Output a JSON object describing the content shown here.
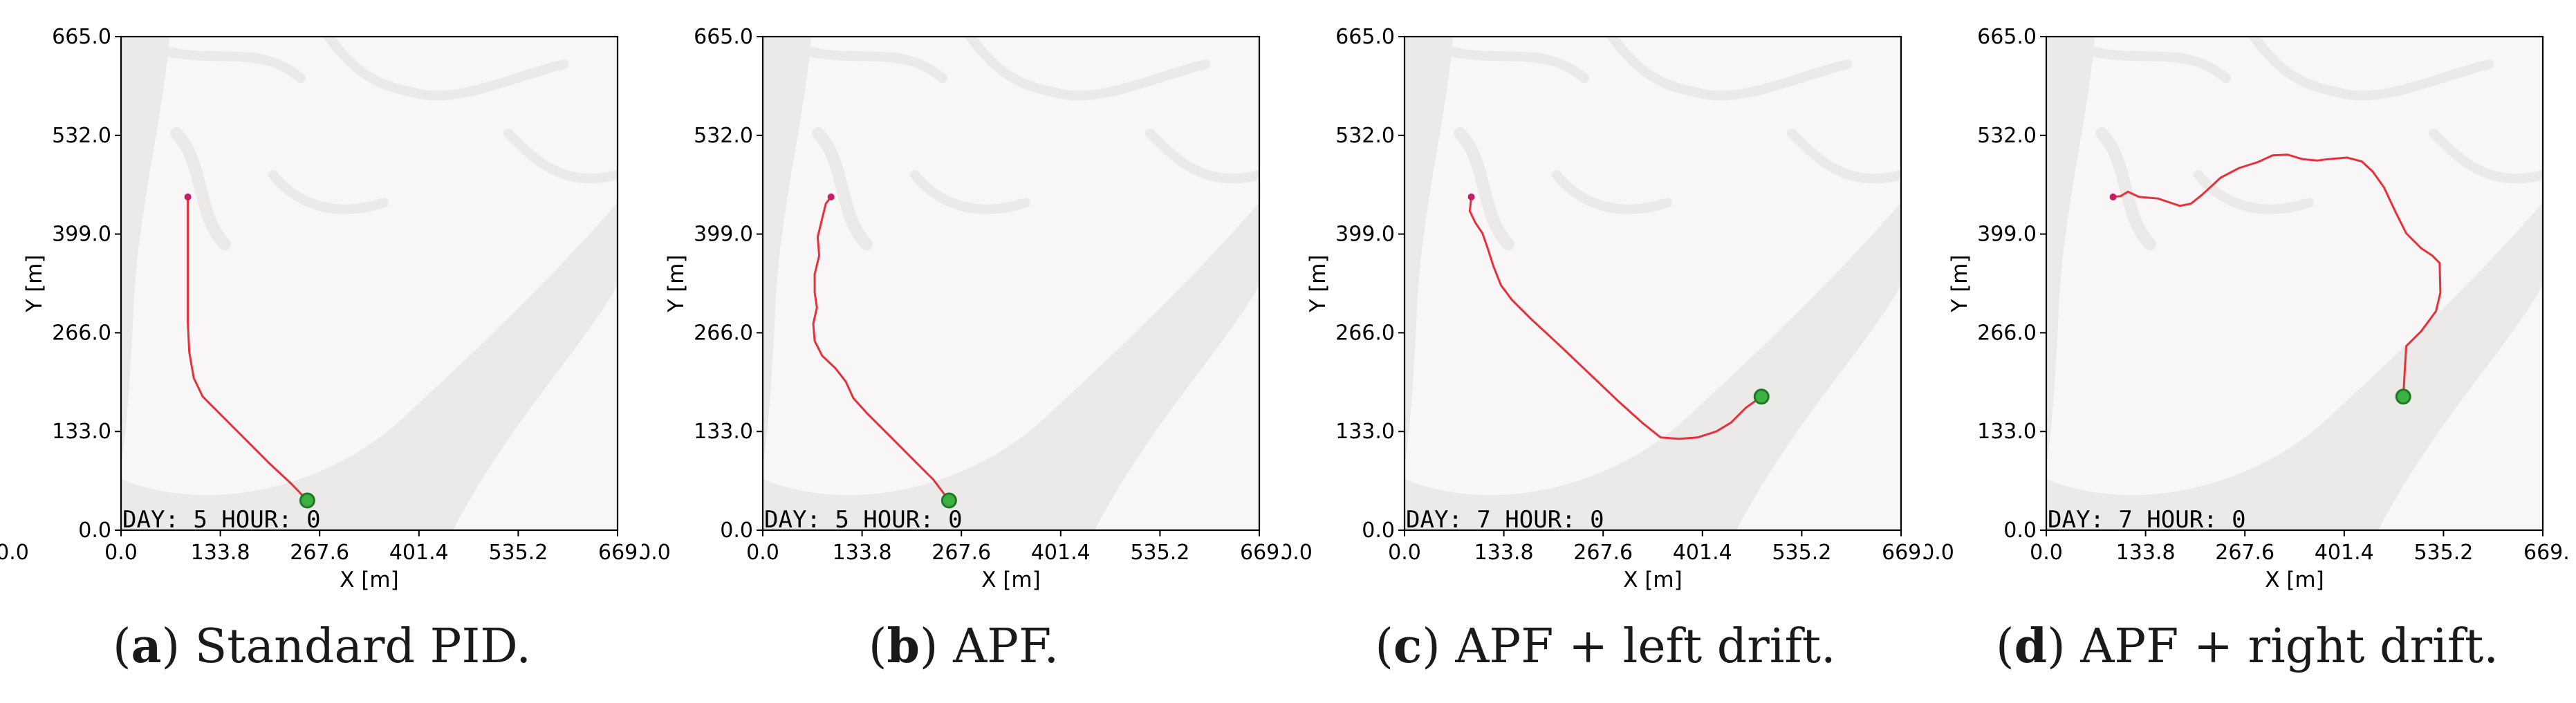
{
  "chart_data": [
    {
      "type": "line",
      "caption_letter": "a",
      "caption_text": "Standard PID.",
      "overlay_text": "DAY: 5 HOUR: 0",
      "xlabel": "X [m]",
      "ylabel": "Y [m]",
      "xlim": [
        0.0,
        669.0
      ],
      "ylim": [
        0.0,
        665.0
      ],
      "xticks": [
        "0.0",
        "133.8",
        "267.6",
        "401.4",
        "535.2",
        "669."
      ],
      "yticks": [
        "0.0",
        "133.0",
        "266.0",
        "399.0",
        "532.0",
        "665.0"
      ],
      "clipped_left_label": "0.0",
      "start_point": [
        90,
        449
      ],
      "goal_point": [
        251,
        40
      ],
      "path": [
        [
          90,
          449
        ],
        [
          90,
          420
        ],
        [
          90,
          380
        ],
        [
          90,
          330
        ],
        [
          90,
          280
        ],
        [
          92,
          240
        ],
        [
          98,
          205
        ],
        [
          110,
          180
        ],
        [
          140,
          150
        ],
        [
          170,
          120
        ],
        [
          200,
          90
        ],
        [
          230,
          62
        ],
        [
          251,
          40
        ]
      ]
    },
    {
      "type": "line",
      "caption_letter": "b",
      "caption_text": "APF.",
      "overlay_text": "DAY: 5 HOUR: 0",
      "xlabel": "X [m]",
      "ylabel": "Y [m]",
      "xlim": [
        0.0,
        669.0
      ],
      "ylim": [
        0.0,
        665.0
      ],
      "xticks": [
        "0.0",
        "133.8",
        "267.6",
        "401.4",
        "535.2",
        "669."
      ],
      "yticks": [
        "0.0",
        "133.0",
        "266.0",
        "399.0",
        "532.0",
        "665.0"
      ],
      "clipped_left_label": "0.0",
      "start_point": [
        92,
        449
      ],
      "goal_point": [
        251,
        40
      ],
      "path": [
        [
          92,
          449
        ],
        [
          85,
          440
        ],
        [
          80,
          420
        ],
        [
          74,
          395
        ],
        [
          76,
          370
        ],
        [
          70,
          345
        ],
        [
          70,
          320
        ],
        [
          73,
          300
        ],
        [
          68,
          278
        ],
        [
          70,
          255
        ],
        [
          80,
          235
        ],
        [
          98,
          218
        ],
        [
          112,
          200
        ],
        [
          122,
          178
        ],
        [
          140,
          158
        ],
        [
          170,
          128
        ],
        [
          200,
          98
        ],
        [
          230,
          68
        ],
        [
          251,
          40
        ]
      ]
    },
    {
      "type": "line",
      "caption_letter": "c",
      "caption_text": "APF + left drift.",
      "overlay_text": "DAY: 7 HOUR: 0",
      "xlabel": "X [m]",
      "ylabel": "Y [m]",
      "xlim": [
        0.0,
        669.0
      ],
      "ylim": [
        0.0,
        665.0
      ],
      "xticks": [
        "0.0",
        "133.8",
        "267.6",
        "401.4",
        "535.2",
        "669."
      ],
      "yticks": [
        "0.0",
        "133.0",
        "266.0",
        "399.0",
        "532.0",
        "665.0"
      ],
      "clipped_left_label": "0.0",
      "start_point": [
        90,
        449
      ],
      "goal_point": [
        481,
        180
      ],
      "path": [
        [
          90,
          449
        ],
        [
          88,
          430
        ],
        [
          95,
          415
        ],
        [
          105,
          400
        ],
        [
          112,
          380
        ],
        [
          120,
          355
        ],
        [
          130,
          330
        ],
        [
          145,
          310
        ],
        [
          170,
          285
        ],
        [
          210,
          248
        ],
        [
          250,
          210
        ],
        [
          290,
          172
        ],
        [
          320,
          145
        ],
        [
          345,
          125
        ],
        [
          370,
          123
        ],
        [
          395,
          125
        ],
        [
          420,
          133
        ],
        [
          440,
          145
        ],
        [
          460,
          165
        ],
        [
          481,
          180
        ]
      ]
    },
    {
      "type": "line",
      "caption_letter": "d",
      "caption_text": "APF + right drift.",
      "overlay_text": "DAY: 7 HOUR: 0",
      "xlabel": "X [m]",
      "ylabel": "Y [m]",
      "xlim": [
        0.0,
        669.0
      ],
      "ylim": [
        0.0,
        665.0
      ],
      "xticks": [
        "0.0",
        "133.8",
        "267.6",
        "401.4",
        "535.2",
        "669."
      ],
      "yticks": [
        "0.0",
        "133.0",
        "266.0",
        "399.0",
        "532.0",
        "665.0"
      ],
      "clipped_left_label": "0.0",
      "start_point": [
        90,
        449
      ],
      "goal_point": [
        481,
        180
      ],
      "path": [
        [
          90,
          449
        ],
        [
          100,
          450
        ],
        [
          110,
          456
        ],
        [
          125,
          449
        ],
        [
          150,
          447
        ],
        [
          165,
          442
        ],
        [
          180,
          437
        ],
        [
          195,
          440
        ],
        [
          210,
          452
        ],
        [
          235,
          475
        ],
        [
          260,
          488
        ],
        [
          285,
          496
        ],
        [
          305,
          505
        ],
        [
          325,
          506
        ],
        [
          345,
          500
        ],
        [
          365,
          498
        ],
        [
          380,
          500
        ],
        [
          405,
          502
        ],
        [
          425,
          497
        ],
        [
          440,
          483
        ],
        [
          455,
          462
        ],
        [
          470,
          430
        ],
        [
          485,
          400
        ],
        [
          505,
          380
        ],
        [
          520,
          370
        ],
        [
          530,
          360
        ],
        [
          531,
          320
        ],
        [
          525,
          295
        ],
        [
          505,
          268
        ],
        [
          485,
          248
        ],
        [
          481,
          180
        ]
      ]
    }
  ],
  "colors": {
    "axes_bg": "#f8f6f6",
    "terrain": "#ece9e9",
    "path": "#e8303a",
    "goal_fill": "#3cb043",
    "goal_edge": "#1e7a22",
    "start": "#cc1b66"
  }
}
